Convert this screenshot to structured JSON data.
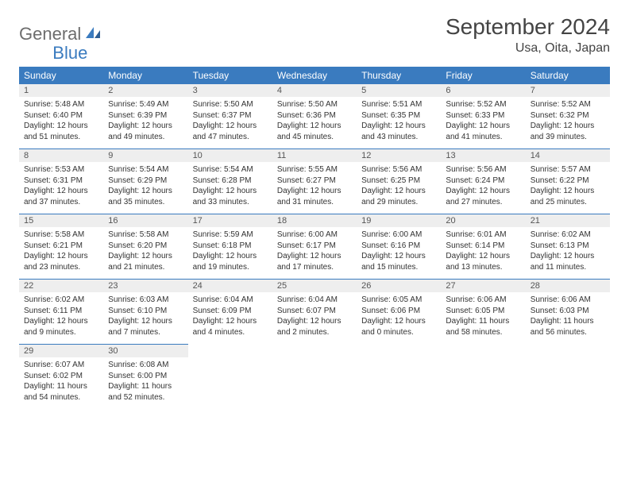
{
  "logo": {
    "text1": "General",
    "text2": "Blue"
  },
  "title": "September 2024",
  "location": "Usa, Oita, Japan",
  "colors": {
    "header_bg": "#3a7bbf",
    "header_text": "#ffffff",
    "daynum_bg": "#eeeeee",
    "border": "#3a7bbf",
    "logo_gray": "#6d6d6d",
    "logo_blue": "#3a7bbf",
    "page_bg": "#ffffff"
  },
  "typography": {
    "title_fontsize": 28,
    "location_fontsize": 16,
    "header_fontsize": 12,
    "daynum_fontsize": 11,
    "body_fontsize": 10
  },
  "weekdays": [
    "Sunday",
    "Monday",
    "Tuesday",
    "Wednesday",
    "Thursday",
    "Friday",
    "Saturday"
  ],
  "days": [
    {
      "n": "1",
      "sunrise": "Sunrise: 5:48 AM",
      "sunset": "Sunset: 6:40 PM",
      "daylight": "Daylight: 12 hours and 51 minutes."
    },
    {
      "n": "2",
      "sunrise": "Sunrise: 5:49 AM",
      "sunset": "Sunset: 6:39 PM",
      "daylight": "Daylight: 12 hours and 49 minutes."
    },
    {
      "n": "3",
      "sunrise": "Sunrise: 5:50 AM",
      "sunset": "Sunset: 6:37 PM",
      "daylight": "Daylight: 12 hours and 47 minutes."
    },
    {
      "n": "4",
      "sunrise": "Sunrise: 5:50 AM",
      "sunset": "Sunset: 6:36 PM",
      "daylight": "Daylight: 12 hours and 45 minutes."
    },
    {
      "n": "5",
      "sunrise": "Sunrise: 5:51 AM",
      "sunset": "Sunset: 6:35 PM",
      "daylight": "Daylight: 12 hours and 43 minutes."
    },
    {
      "n": "6",
      "sunrise": "Sunrise: 5:52 AM",
      "sunset": "Sunset: 6:33 PM",
      "daylight": "Daylight: 12 hours and 41 minutes."
    },
    {
      "n": "7",
      "sunrise": "Sunrise: 5:52 AM",
      "sunset": "Sunset: 6:32 PM",
      "daylight": "Daylight: 12 hours and 39 minutes."
    },
    {
      "n": "8",
      "sunrise": "Sunrise: 5:53 AM",
      "sunset": "Sunset: 6:31 PM",
      "daylight": "Daylight: 12 hours and 37 minutes."
    },
    {
      "n": "9",
      "sunrise": "Sunrise: 5:54 AM",
      "sunset": "Sunset: 6:29 PM",
      "daylight": "Daylight: 12 hours and 35 minutes."
    },
    {
      "n": "10",
      "sunrise": "Sunrise: 5:54 AM",
      "sunset": "Sunset: 6:28 PM",
      "daylight": "Daylight: 12 hours and 33 minutes."
    },
    {
      "n": "11",
      "sunrise": "Sunrise: 5:55 AM",
      "sunset": "Sunset: 6:27 PM",
      "daylight": "Daylight: 12 hours and 31 minutes."
    },
    {
      "n": "12",
      "sunrise": "Sunrise: 5:56 AM",
      "sunset": "Sunset: 6:25 PM",
      "daylight": "Daylight: 12 hours and 29 minutes."
    },
    {
      "n": "13",
      "sunrise": "Sunrise: 5:56 AM",
      "sunset": "Sunset: 6:24 PM",
      "daylight": "Daylight: 12 hours and 27 minutes."
    },
    {
      "n": "14",
      "sunrise": "Sunrise: 5:57 AM",
      "sunset": "Sunset: 6:22 PM",
      "daylight": "Daylight: 12 hours and 25 minutes."
    },
    {
      "n": "15",
      "sunrise": "Sunrise: 5:58 AM",
      "sunset": "Sunset: 6:21 PM",
      "daylight": "Daylight: 12 hours and 23 minutes."
    },
    {
      "n": "16",
      "sunrise": "Sunrise: 5:58 AM",
      "sunset": "Sunset: 6:20 PM",
      "daylight": "Daylight: 12 hours and 21 minutes."
    },
    {
      "n": "17",
      "sunrise": "Sunrise: 5:59 AM",
      "sunset": "Sunset: 6:18 PM",
      "daylight": "Daylight: 12 hours and 19 minutes."
    },
    {
      "n": "18",
      "sunrise": "Sunrise: 6:00 AM",
      "sunset": "Sunset: 6:17 PM",
      "daylight": "Daylight: 12 hours and 17 minutes."
    },
    {
      "n": "19",
      "sunrise": "Sunrise: 6:00 AM",
      "sunset": "Sunset: 6:16 PM",
      "daylight": "Daylight: 12 hours and 15 minutes."
    },
    {
      "n": "20",
      "sunrise": "Sunrise: 6:01 AM",
      "sunset": "Sunset: 6:14 PM",
      "daylight": "Daylight: 12 hours and 13 minutes."
    },
    {
      "n": "21",
      "sunrise": "Sunrise: 6:02 AM",
      "sunset": "Sunset: 6:13 PM",
      "daylight": "Daylight: 12 hours and 11 minutes."
    },
    {
      "n": "22",
      "sunrise": "Sunrise: 6:02 AM",
      "sunset": "Sunset: 6:11 PM",
      "daylight": "Daylight: 12 hours and 9 minutes."
    },
    {
      "n": "23",
      "sunrise": "Sunrise: 6:03 AM",
      "sunset": "Sunset: 6:10 PM",
      "daylight": "Daylight: 12 hours and 7 minutes."
    },
    {
      "n": "24",
      "sunrise": "Sunrise: 6:04 AM",
      "sunset": "Sunset: 6:09 PM",
      "daylight": "Daylight: 12 hours and 4 minutes."
    },
    {
      "n": "25",
      "sunrise": "Sunrise: 6:04 AM",
      "sunset": "Sunset: 6:07 PM",
      "daylight": "Daylight: 12 hours and 2 minutes."
    },
    {
      "n": "26",
      "sunrise": "Sunrise: 6:05 AM",
      "sunset": "Sunset: 6:06 PM",
      "daylight": "Daylight: 12 hours and 0 minutes."
    },
    {
      "n": "27",
      "sunrise": "Sunrise: 6:06 AM",
      "sunset": "Sunset: 6:05 PM",
      "daylight": "Daylight: 11 hours and 58 minutes."
    },
    {
      "n": "28",
      "sunrise": "Sunrise: 6:06 AM",
      "sunset": "Sunset: 6:03 PM",
      "daylight": "Daylight: 11 hours and 56 minutes."
    },
    {
      "n": "29",
      "sunrise": "Sunrise: 6:07 AM",
      "sunset": "Sunset: 6:02 PM",
      "daylight": "Daylight: 11 hours and 54 minutes."
    },
    {
      "n": "30",
      "sunrise": "Sunrise: 6:08 AM",
      "sunset": "Sunset: 6:00 PM",
      "daylight": "Daylight: 11 hours and 52 minutes."
    }
  ]
}
